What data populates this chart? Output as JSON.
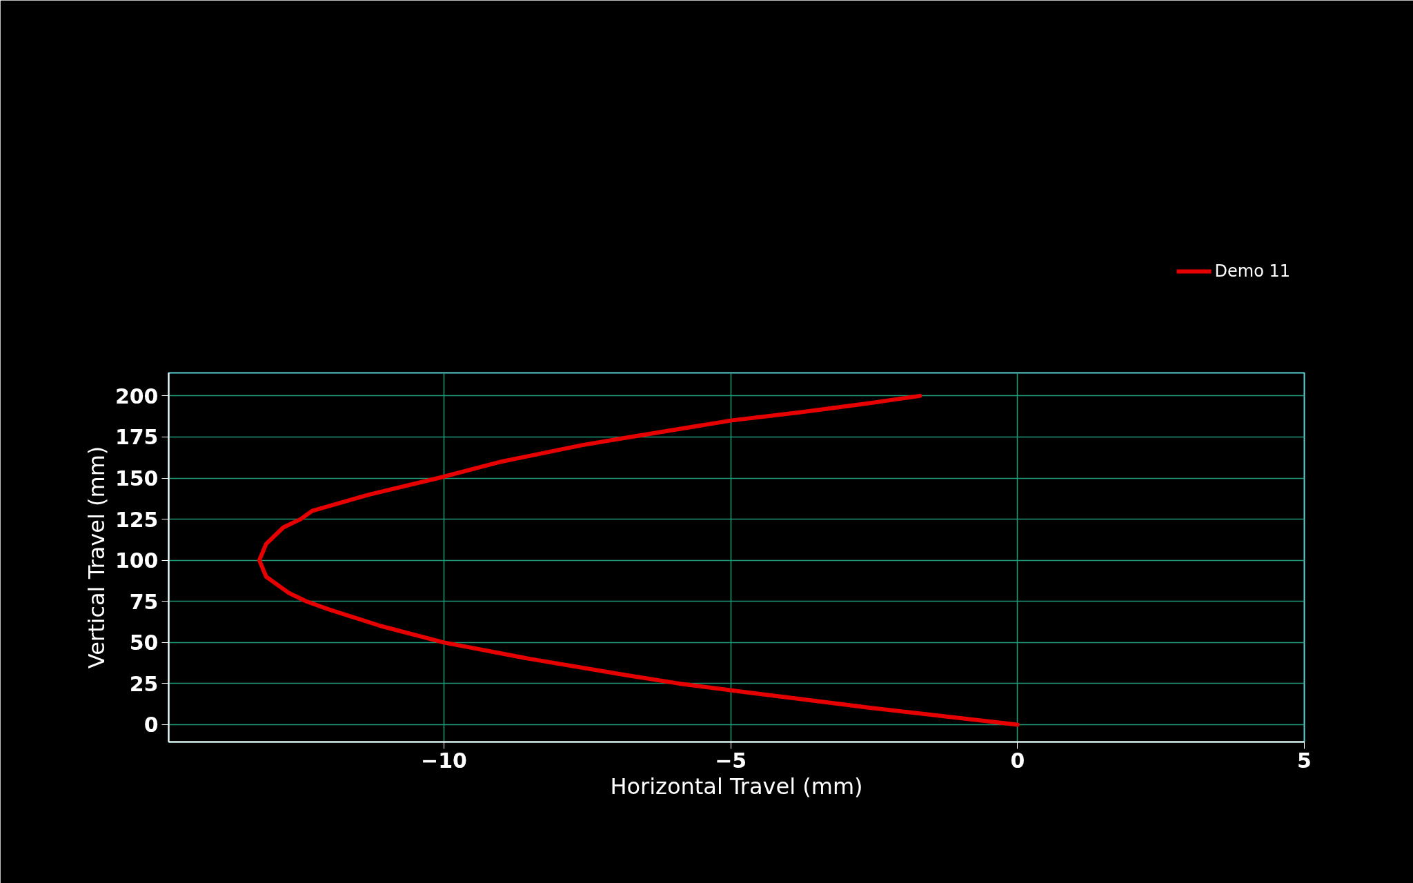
{
  "chart_data": {
    "type": "line",
    "xlabel": "Horizontal Travel (mm)",
    "ylabel": "Vertical Travel (mm)",
    "xlim": [
      -14.8,
      5
    ],
    "ylim": [
      -10.5,
      214
    ],
    "xticks": [
      -10,
      -5,
      0,
      5
    ],
    "yticks": [
      0,
      25,
      50,
      75,
      100,
      125,
      150,
      175,
      200
    ],
    "grid": true,
    "legend": "top right",
    "line_style": "solid",
    "marker": "none",
    "series": [
      {
        "name": "Demo 11",
        "color": "#e60000",
        "x": [
          0,
          -2.5,
          -4.8,
          -5.9,
          -6.8,
          -8.5,
          -10.0,
          -11.1,
          -12.0,
          -12.4,
          -12.7,
          -13.1,
          -13.22,
          -13.1,
          -12.8,
          -12.5,
          -12.3,
          -11.3,
          -10.1,
          -9.0,
          -7.6,
          -6.75,
          -5.0,
          -3.8,
          -2.7,
          -1.7
        ],
        "values": [
          0,
          10,
          20,
          25,
          30,
          40,
          50,
          60,
          70,
          75,
          80,
          90,
          100,
          110,
          120,
          125,
          130,
          140,
          150,
          160,
          170,
          175,
          185,
          190,
          195,
          200
        ]
      }
    ]
  }
}
